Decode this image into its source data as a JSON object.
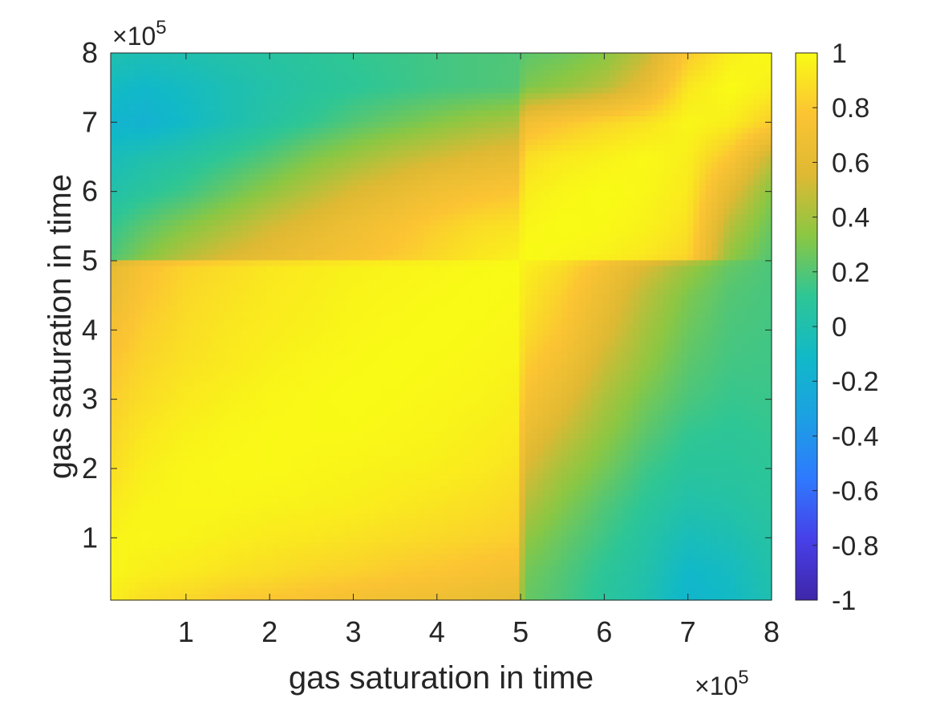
{
  "chart_data": {
    "type": "heatmap",
    "title": "",
    "xlabel": "gas saturation in time",
    "ylabel": "gas saturation in time",
    "x_exponent_label": "×10",
    "x_exponent_power": "5",
    "y_exponent_label": "×10",
    "y_exponent_power": "5",
    "xlim": [
      0.1,
      8
    ],
    "ylim": [
      0.1,
      8
    ],
    "x_ticks": [
      1,
      2,
      3,
      4,
      5,
      6,
      7,
      8
    ],
    "y_ticks": [
      1,
      2,
      3,
      4,
      5,
      6,
      7,
      8
    ],
    "x_tick_labels": [
      "1",
      "2",
      "3",
      "4",
      "5",
      "6",
      "7",
      "8"
    ],
    "y_tick_labels": [
      "1",
      "2",
      "3",
      "4",
      "5",
      "6",
      "7",
      "8"
    ],
    "clim": [
      -1,
      1
    ],
    "colorbar_ticks": [
      1,
      0.8,
      0.6,
      0.4,
      0.2,
      0,
      -0.2,
      -0.4,
      -0.6,
      -0.8,
      -1
    ],
    "colorbar_tick_labels": [
      "1",
      "0.8",
      "0.6",
      "0.4",
      "0.2",
      "0",
      "-0.2",
      "-0.4",
      "-0.6",
      "-0.8",
      "-1"
    ],
    "colormap": "parula",
    "colormap_stops": [
      "#3e26a8",
      "#4740e9",
      "#2e7afe",
      "#1ca0e3",
      "#11b9c8",
      "#2ec695",
      "#8bc743",
      "#dfb933",
      "#fbc433",
      "#f9fb15"
    ],
    "grid": false,
    "colorbar_location": "right",
    "x_values": [
      0.1,
      0.5,
      1,
      1.5,
      2,
      2.5,
      3,
      3.5,
      4,
      4.5,
      4.95,
      5.05,
      5.5,
      6,
      6.5,
      7,
      7.5,
      8
    ],
    "y_values": [
      0.1,
      0.5,
      1,
      1.5,
      2,
      2.5,
      3,
      3.5,
      4,
      4.5,
      4.95,
      5.05,
      5.5,
      6,
      6.5,
      7,
      7.5,
      8
    ],
    "values": [
      [
        0.95,
        0.88,
        0.85,
        0.8,
        0.78,
        0.75,
        0.72,
        0.7,
        0.68,
        0.65,
        0.62,
        0.25,
        0.18,
        0.08,
        0.0,
        -0.15,
        -0.1,
        0.0
      ],
      [
        0.98,
        0.95,
        0.93,
        0.9,
        0.88,
        0.85,
        0.83,
        0.8,
        0.78,
        0.75,
        0.72,
        0.28,
        0.2,
        0.1,
        0.02,
        -0.12,
        -0.08,
        0.02
      ],
      [
        0.97,
        0.98,
        0.97,
        0.95,
        0.93,
        0.92,
        0.9,
        0.88,
        0.86,
        0.84,
        0.82,
        0.35,
        0.25,
        0.15,
        0.05,
        -0.05,
        -0.02,
        0.05
      ],
      [
        0.93,
        0.97,
        0.98,
        0.98,
        0.97,
        0.96,
        0.95,
        0.93,
        0.91,
        0.89,
        0.86,
        0.45,
        0.32,
        0.2,
        0.1,
        0.02,
        0.04,
        0.08
      ],
      [
        0.88,
        0.95,
        0.98,
        0.99,
        0.99,
        0.98,
        0.97,
        0.96,
        0.95,
        0.93,
        0.9,
        0.55,
        0.4,
        0.28,
        0.15,
        0.08,
        0.08,
        0.1
      ],
      [
        0.85,
        0.92,
        0.96,
        0.98,
        0.99,
        0.99,
        0.99,
        0.98,
        0.97,
        0.95,
        0.93,
        0.65,
        0.5,
        0.35,
        0.22,
        0.12,
        0.1,
        0.12
      ],
      [
        0.82,
        0.88,
        0.93,
        0.96,
        0.98,
        0.99,
        1.0,
        0.99,
        0.98,
        0.97,
        0.95,
        0.75,
        0.6,
        0.42,
        0.28,
        0.18,
        0.13,
        0.14
      ],
      [
        0.78,
        0.85,
        0.9,
        0.93,
        0.96,
        0.98,
        0.99,
        1.0,
        0.99,
        0.98,
        0.97,
        0.82,
        0.7,
        0.5,
        0.35,
        0.22,
        0.16,
        0.15
      ],
      [
        0.72,
        0.82,
        0.88,
        0.92,
        0.94,
        0.96,
        0.98,
        0.99,
        1.0,
        0.99,
        0.98,
        0.88,
        0.78,
        0.58,
        0.4,
        0.26,
        0.18,
        0.16
      ],
      [
        0.65,
        0.78,
        0.86,
        0.9,
        0.93,
        0.95,
        0.97,
        0.98,
        0.99,
        1.0,
        0.99,
        0.92,
        0.82,
        0.65,
        0.45,
        0.3,
        0.2,
        0.17
      ],
      [
        0.6,
        0.75,
        0.84,
        0.88,
        0.92,
        0.94,
        0.96,
        0.97,
        0.98,
        0.99,
        1.0,
        0.95,
        0.88,
        0.72,
        0.55,
        0.38,
        0.24,
        0.18
      ],
      [
        0.18,
        0.32,
        0.45,
        0.55,
        0.62,
        0.68,
        0.74,
        0.8,
        0.86,
        0.92,
        0.95,
        1.0,
        0.98,
        0.96,
        0.92,
        0.85,
        0.35,
        0.2
      ],
      [
        0.12,
        0.22,
        0.32,
        0.42,
        0.52,
        0.6,
        0.68,
        0.75,
        0.82,
        0.88,
        0.9,
        0.98,
        1.0,
        0.99,
        0.96,
        0.9,
        0.45,
        0.25
      ],
      [
        0.02,
        0.08,
        0.15,
        0.25,
        0.35,
        0.45,
        0.55,
        0.62,
        0.7,
        0.75,
        0.78,
        0.94,
        0.98,
        1.0,
        0.98,
        0.93,
        0.6,
        0.32
      ],
      [
        -0.05,
        0.0,
        0.05,
        0.12,
        0.2,
        0.3,
        0.38,
        0.46,
        0.52,
        0.58,
        0.62,
        0.88,
        0.93,
        0.96,
        0.99,
        0.95,
        0.78,
        0.48
      ],
      [
        -0.15,
        -0.18,
        -0.1,
        -0.02,
        0.05,
        0.12,
        0.2,
        0.26,
        0.32,
        0.38,
        0.42,
        0.7,
        0.78,
        0.85,
        0.9,
        0.98,
        0.95,
        0.82
      ],
      [
        -0.08,
        -0.12,
        -0.08,
        -0.02,
        0.03,
        0.07,
        0.1,
        0.13,
        0.16,
        0.18,
        0.2,
        0.3,
        0.36,
        0.45,
        0.62,
        0.92,
        1.0,
        0.95
      ],
      [
        0.0,
        -0.02,
        0.0,
        0.03,
        0.06,
        0.09,
        0.12,
        0.14,
        0.16,
        0.18,
        0.19,
        0.22,
        0.26,
        0.32,
        0.48,
        0.8,
        0.95,
        1.0
      ]
    ]
  }
}
